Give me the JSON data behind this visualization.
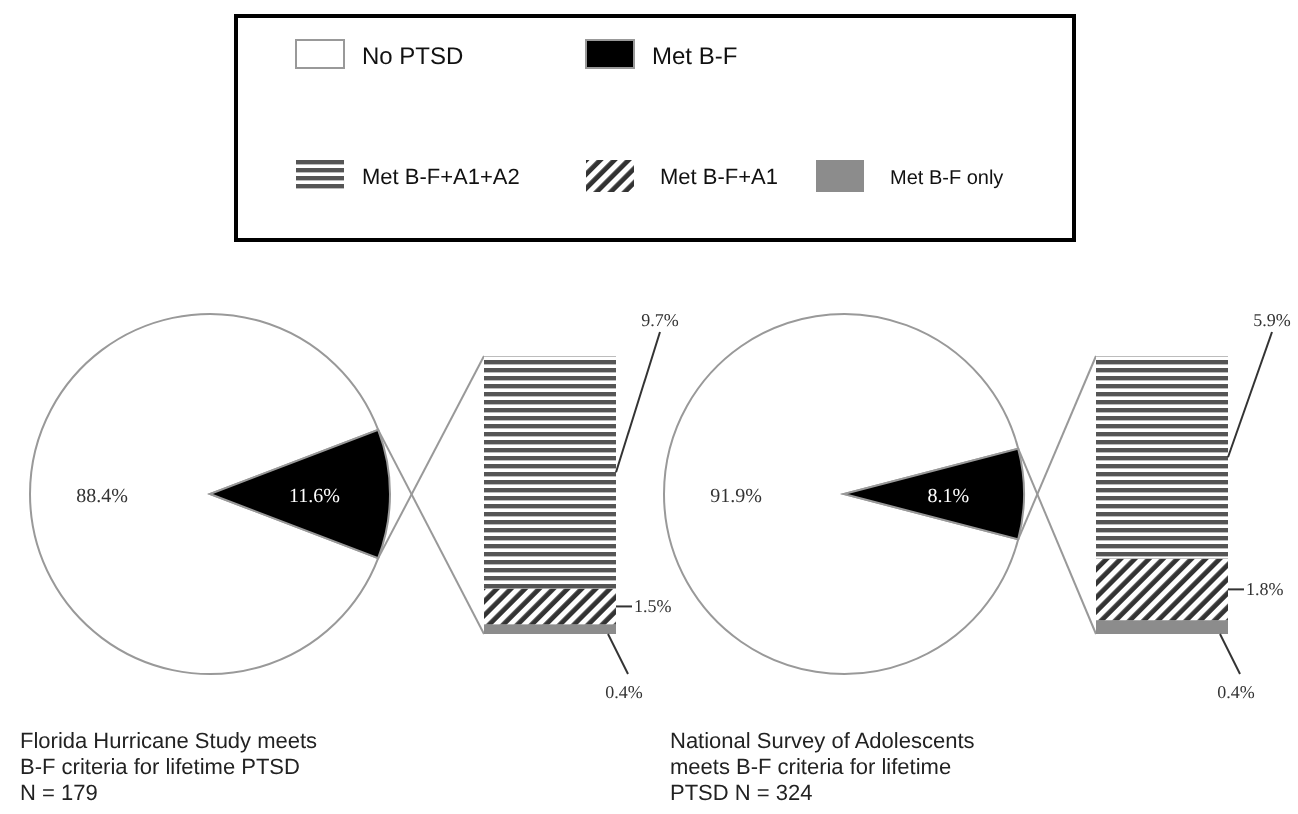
{
  "chart_data": [
    {
      "type": "pie",
      "categories": [
        "No PTSD",
        "Met B-F"
      ],
      "values": [
        88.4,
        11.6
      ],
      "colors": [
        "#ffffff",
        "#000000"
      ],
      "value_labels": [
        "88.4%",
        "11.6%"
      ],
      "legend": "top",
      "annotations": [
        "Florida Hurricane Study meets B-F criteria for lifetime PTSD N = 179"
      ]
    },
    {
      "type": "bar",
      "stacked": true,
      "categories": [
        null
      ],
      "legend": "top",
      "series": [
        {
          "name": "Met B-F only",
          "color": "#8c8c8c",
          "values": [
            0.4
          ],
          "value_labels": [
            "0.4%"
          ]
        },
        {
          "name": "Met B-F+A1",
          "color": "#333333",
          "values": [
            1.5
          ],
          "value_labels": [
            "1.5%"
          ]
        },
        {
          "name": "Met B-F+A1+A2",
          "color": "#555555",
          "values": [
            9.7
          ],
          "value_labels": [
            "9.7%"
          ]
        }
      ]
    },
    {
      "type": "pie",
      "categories": [
        null,
        null
      ],
      "values": [
        91.9,
        8.1
      ],
      "colors": [
        "#ffffff",
        "#000000"
      ],
      "value_labels": [
        "91.9%",
        "8.1%"
      ],
      "annotations": [
        "National Survey of Adolescents meets B-F criteria for lifetime PTSD N = 324"
      ]
    },
    {
      "type": "bar",
      "stacked": true,
      "categories": [
        null
      ],
      "series": [
        {
          "color": "#8c8c8c",
          "values": [
            0.4
          ],
          "value_labels": [
            "0.4%"
          ]
        },
        {
          "color": "#333333",
          "values": [
            1.8
          ],
          "value_labels": [
            "1.8%"
          ]
        },
        {
          "color": "#555555",
          "values": [
            5.9
          ],
          "value_labels": [
            "5.9%"
          ]
        }
      ]
    }
  ]
}
